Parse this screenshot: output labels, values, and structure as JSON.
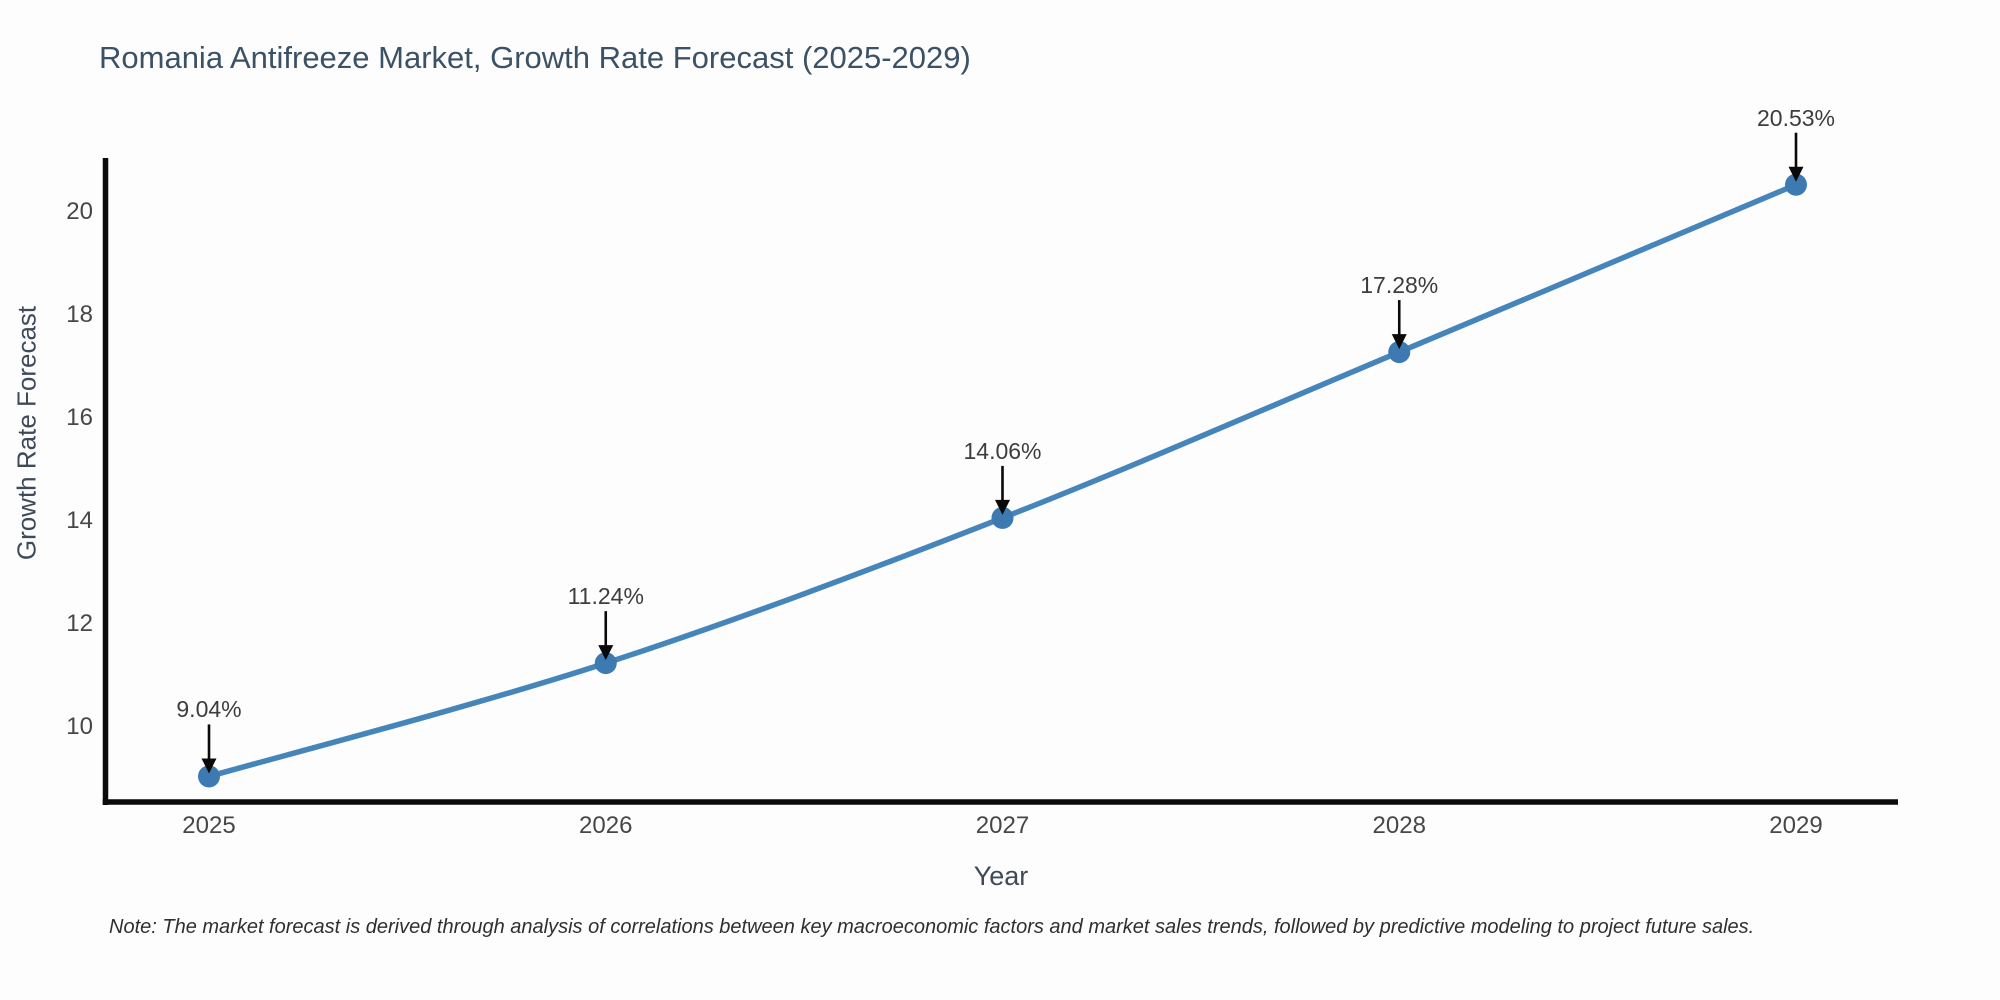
{
  "title": {
    "text": "Romania Antifreeze Market, Growth Rate Forecast (2025-2029)",
    "color": "#3b5166"
  },
  "note": {
    "text": "Note: The market forecast is derived through analysis of correlations between key macroeconomic factors and market sales trends, followed by predictive modeling to project future sales."
  },
  "chart_data": {
    "type": "line",
    "title": "Romania Antifreeze Market, Growth Rate Forecast (2025-2029)",
    "xlabel": "Year",
    "ylabel": "Growth Rate Forecast",
    "x": [
      2025,
      2026,
      2027,
      2028,
      2029
    ],
    "series": [
      {
        "name": "Growth Rate Forecast",
        "values": [
          9.04,
          11.24,
          14.06,
          17.28,
          20.53
        ]
      }
    ],
    "point_labels": [
      "9.04%",
      "11.24%",
      "14.06%",
      "17.28%",
      "20.53%"
    ],
    "xticks": [
      "2025",
      "2026",
      "2027",
      "2028",
      "2029"
    ],
    "yticks": [
      10,
      12,
      14,
      16,
      18,
      20
    ],
    "xlim": [
      2024.74,
      2029.26
    ],
    "ylim": [
      8.54,
      21.05
    ],
    "grid": false,
    "legend_position": "none",
    "annotations_style": "value label with downward black arrow to each marker",
    "line_color": "#4585ba",
    "marker_color": "#3d7ab2",
    "arrow_color": "#0a0a0a",
    "axis_color": "#0b0b0b",
    "tick_color": "#474747",
    "label_color": "#3d3d3d"
  }
}
